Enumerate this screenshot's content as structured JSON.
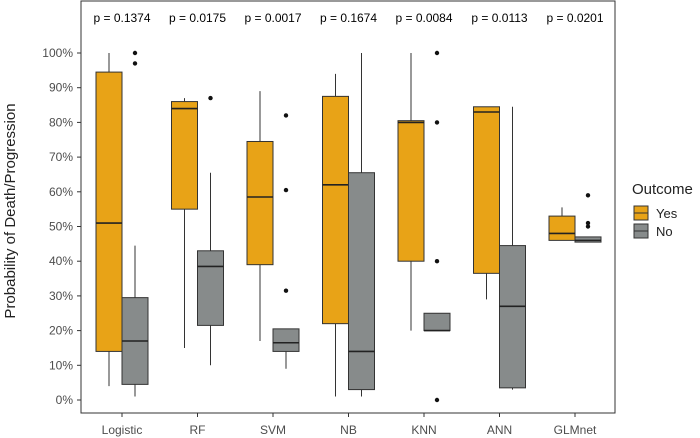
{
  "chart_data": {
    "type": "boxplot",
    "title": "",
    "xlabel": "",
    "ylabel": "Probability of Death/Progression",
    "ylim": [
      0,
      100
    ],
    "y_ticks": [
      "0%",
      "10%",
      "20%",
      "30%",
      "40%",
      "50%",
      "60%",
      "70%",
      "80%",
      "90%",
      "100%"
    ],
    "categories": [
      "Logistic",
      "RF",
      "SVM",
      "NB",
      "KNN",
      "ANN",
      "GLMnet"
    ],
    "p_values": [
      "p = 0.1374",
      "p = 0.0175",
      "p = 0.0017",
      "p = 0.1674",
      "p = 0.0084",
      "p = 0.0113",
      "p = 0.0201"
    ],
    "legend": {
      "title": "Outcome",
      "position": "right",
      "entries": [
        {
          "name": "Yes",
          "color": "#E8A317"
        },
        {
          "name": "No",
          "color": "#878B8B"
        }
      ]
    },
    "series": [
      {
        "name": "Yes",
        "color": "#E8A317",
        "boxes": [
          {
            "min": 4,
            "q1": 14,
            "median": 51,
            "q3": 94.5,
            "max": 100,
            "outliers": []
          },
          {
            "min": 15,
            "q1": 55,
            "median": 84,
            "q3": 86,
            "max": 87,
            "outliers": []
          },
          {
            "min": 17,
            "q1": 39,
            "median": 58.5,
            "q3": 74.5,
            "max": 89,
            "outliers": []
          },
          {
            "min": 1,
            "q1": 22,
            "median": 62,
            "q3": 87.5,
            "max": 94,
            "outliers": []
          },
          {
            "min": 20,
            "q1": 40,
            "median": 80,
            "q3": 80.5,
            "max": 100,
            "outliers": []
          },
          {
            "min": 29,
            "q1": 36.5,
            "median": 83,
            "q3": 84.5,
            "max": 84.5,
            "outliers": []
          },
          {
            "min": 46,
            "q1": 46,
            "median": 48,
            "q3": 53,
            "max": 55.5,
            "outliers": []
          }
        ]
      },
      {
        "name": "No",
        "color": "#878B8B",
        "boxes": [
          {
            "min": 1,
            "q1": 4.5,
            "median": 17,
            "q3": 29.5,
            "max": 44.5,
            "outliers": [
              97,
              100
            ]
          },
          {
            "min": 10,
            "q1": 21.5,
            "median": 38.5,
            "q3": 43,
            "max": 65.5,
            "outliers": [
              87
            ]
          },
          {
            "min": 9,
            "q1": 14,
            "median": 16.5,
            "q3": 20.5,
            "max": 20.5,
            "outliers": [
              31.5,
              60.5,
              82
            ]
          },
          {
            "min": 1,
            "q1": 3,
            "median": 14,
            "q3": 65.5,
            "max": 100,
            "outliers": []
          },
          {
            "min": 20,
            "q1": 20,
            "median": 20,
            "q3": 25,
            "max": 25,
            "outliers": [
              0,
              40,
              80,
              100
            ]
          },
          {
            "min": 3,
            "q1": 3.5,
            "median": 27,
            "q3": 44.5,
            "max": 84.5,
            "outliers": []
          },
          {
            "min": 45.5,
            "q1": 45.5,
            "median": 46,
            "q3": 47,
            "max": 47,
            "outliers": [
              50,
              51,
              59
            ]
          }
        ]
      }
    ]
  }
}
